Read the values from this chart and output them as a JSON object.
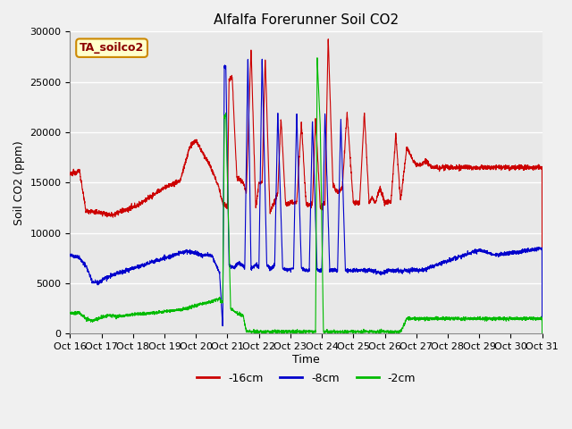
{
  "title": "Alfalfa Forerunner Soil CO2",
  "ylabel": "Soil CO2 (ppm)",
  "xlabel": "Time",
  "legend_label": "TA_soilco2",
  "series_labels": [
    "-16cm",
    "-8cm",
    "-2cm"
  ],
  "series_colors": [
    "#cc0000",
    "#0000cc",
    "#00bb00"
  ],
  "xlim": [
    0,
    15
  ],
  "ylim": [
    0,
    30000
  ],
  "yticks": [
    0,
    5000,
    10000,
    15000,
    20000,
    25000,
    30000
  ],
  "xtick_labels": [
    "Oct 16",
    "Oct 17",
    "Oct 18",
    "Oct 19",
    "Oct 20",
    "Oct 21",
    "Oct 22",
    "Oct 23",
    "Oct 24",
    "Oct 25",
    "Oct 26",
    "Oct 27",
    "Oct 28",
    "Oct 29",
    "Oct 30",
    "Oct 31"
  ],
  "fig_bg_color": "#f0f0f0",
  "plot_bg_color": "#e8e8e8",
  "grid_color": "#ffffff",
  "title_fontsize": 11,
  "label_fontsize": 9,
  "tick_fontsize": 8
}
